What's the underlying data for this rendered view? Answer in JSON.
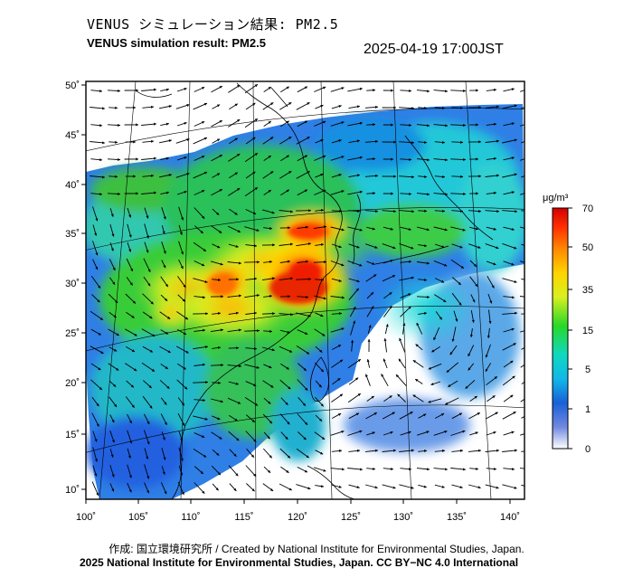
{
  "header": {
    "title_jp": "VENUS シミュレーション結果: PM2.5",
    "title_en": "VENUS simulation result: PM2.5",
    "timestamp": "2025-04-19 17:00JST"
  },
  "map": {
    "longitude_ticks": [
      "100˚",
      "105˚",
      "110˚",
      "115˚",
      "120˚",
      "125˚",
      "130˚",
      "135˚",
      "140˚"
    ],
    "latitude_ticks": [
      "50˚",
      "45˚",
      "40˚",
      "35˚",
      "30˚",
      "25˚",
      "20˚",
      "15˚",
      "10˚"
    ],
    "longitude_range": [
      100,
      141
    ],
    "latitude_range": [
      9,
      51
    ],
    "pollution_hotspots": [
      {
        "lon": 118.5,
        "lat": 31.5,
        "level": 70
      },
      {
        "lon": 120.0,
        "lat": 34.5,
        "level": 70
      },
      {
        "lon": 117.0,
        "lat": 35.5,
        "level": 55
      },
      {
        "lon": 114.0,
        "lat": 30.5,
        "level": 50
      },
      {
        "lon": 109.0,
        "lat": 28.0,
        "level": 35
      },
      {
        "lon": 112.0,
        "lat": 27.0,
        "level": 40
      }
    ],
    "colors": {
      "frame": "#000000",
      "graticule": "#000000",
      "arrow": "#000000",
      "outside_domain": "#ffffff"
    }
  },
  "colorbar": {
    "unit": "μg/m³",
    "labels": [
      "70",
      "50",
      "35",
      "15",
      "5",
      "1",
      "0"
    ],
    "stops": [
      "#ff0000",
      "#ffb000",
      "#ffff00",
      "#2ee82e",
      "#00e0e0",
      "#1f6fe0",
      "#ffffff"
    ]
  },
  "footer": {
    "credit_line1": "作成: 国立環境研究所 / Created by National Institute for Environmental Studies, Japan.",
    "credit_line2": "2025 National Institute for Environmental Studies, Japan. CC BY−NC 4.0 International"
  }
}
